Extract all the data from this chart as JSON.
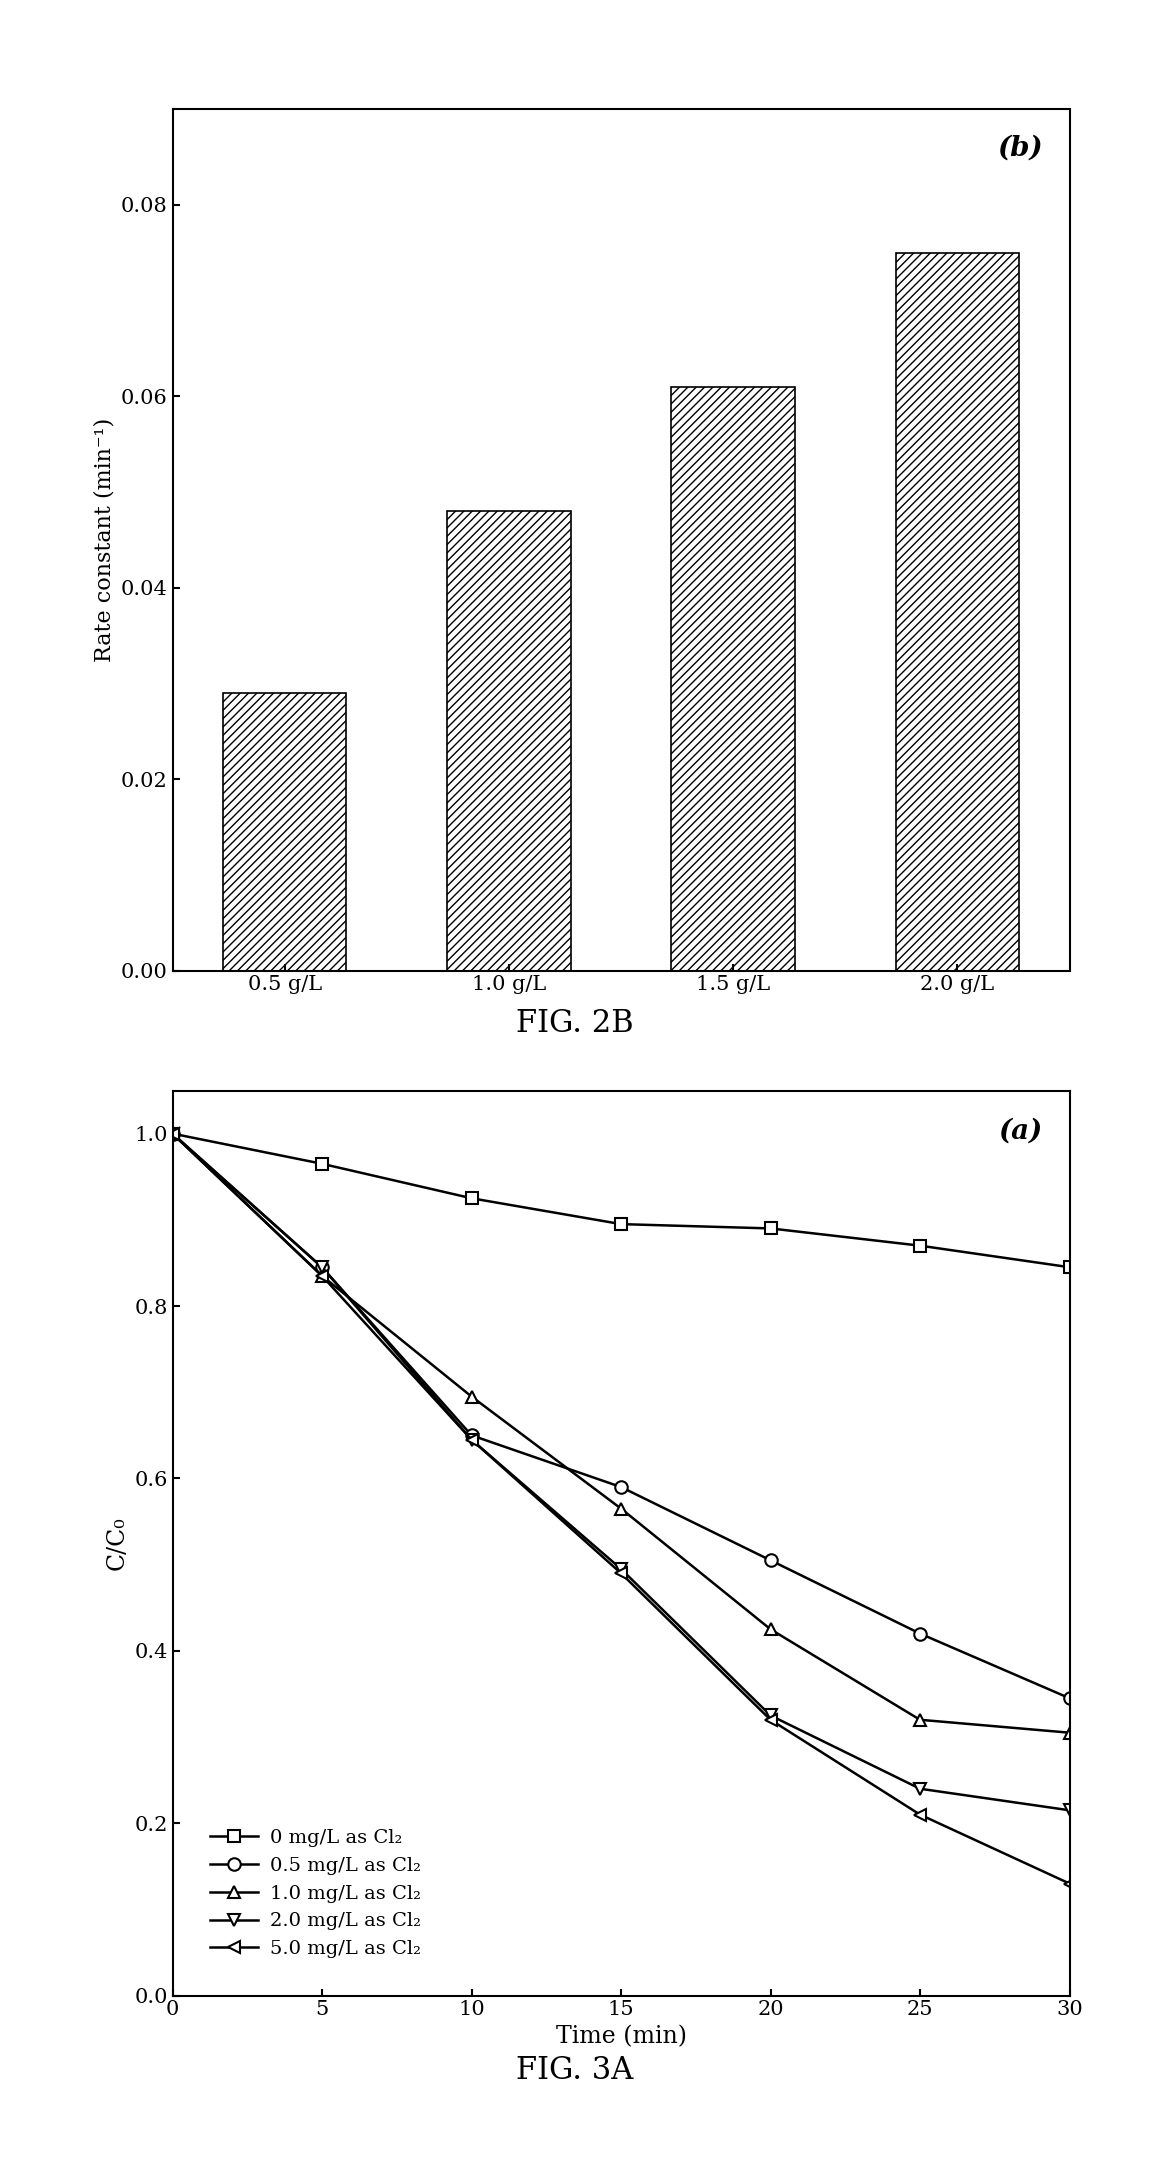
{
  "bar_categories": [
    "0.5 g/L",
    "1.0 g/L",
    "1.5 g/L",
    "2.0 g/L"
  ],
  "bar_values": [
    0.029,
    0.048,
    0.061,
    0.075
  ],
  "bar_ylabel": "Rate constant (min⁻¹)",
  "bar_ylim": [
    0.0,
    0.09
  ],
  "bar_yticks": [
    0.0,
    0.02,
    0.04,
    0.06,
    0.08
  ],
  "bar_label": "(b)",
  "bar_hatch": "////",
  "fig2b_caption": "FIG. 2B",
  "line_series": [
    {
      "label": "0 mg/L as Cl₂",
      "marker": "s",
      "x": [
        0,
        5,
        10,
        15,
        20,
        25,
        30
      ],
      "y": [
        1.0,
        0.965,
        0.925,
        0.895,
        0.89,
        0.87,
        0.845
      ]
    },
    {
      "label": "0.5 mg/L as Cl₂",
      "marker": "o",
      "x": [
        0,
        5,
        10,
        15,
        20,
        25,
        30
      ],
      "y": [
        1.0,
        0.845,
        0.65,
        0.59,
        0.505,
        0.42,
        0.345
      ]
    },
    {
      "label": "1.0 mg/L as Cl₂",
      "marker": "^",
      "x": [
        0,
        5,
        10,
        15,
        20,
        25,
        30
      ],
      "y": [
        1.0,
        0.835,
        0.695,
        0.565,
        0.425,
        0.32,
        0.305
      ]
    },
    {
      "label": "2.0 mg/L as Cl₂",
      "marker": "v",
      "x": [
        0,
        5,
        10,
        15,
        20,
        25,
        30
      ],
      "y": [
        1.0,
        0.845,
        0.645,
        0.495,
        0.325,
        0.24,
        0.215
      ]
    },
    {
      "label": "5.0 mg/L as Cl₂",
      "marker": "<",
      "x": [
        0,
        5,
        10,
        15,
        20,
        25,
        30
      ],
      "y": [
        1.0,
        0.835,
        0.645,
        0.49,
        0.32,
        0.21,
        0.13
      ]
    }
  ],
  "line_xlabel": "Time (min)",
  "line_ylabel": "C/C₀",
  "line_xlim": [
    0,
    30
  ],
  "line_ylim": [
    0.0,
    1.05
  ],
  "line_xticks": [
    0,
    5,
    10,
    15,
    20,
    25,
    30
  ],
  "line_yticks": [
    0.0,
    0.2,
    0.4,
    0.6,
    0.8,
    1.0
  ],
  "line_label": "(a)",
  "fig3a_caption": "FIG. 3A"
}
